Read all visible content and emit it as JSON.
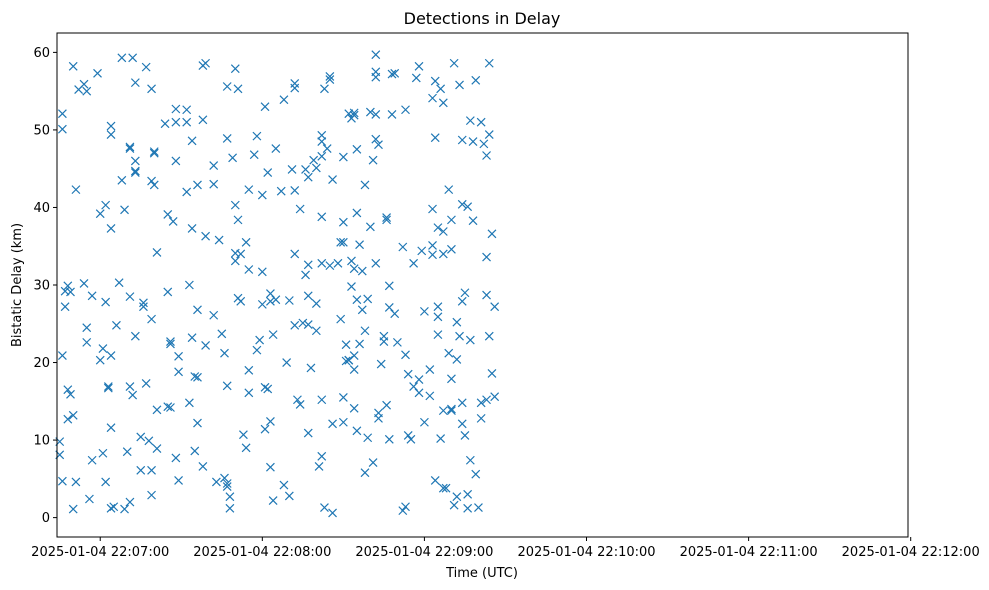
{
  "chart_data": {
    "type": "scatter",
    "title": "Detections in Delay",
    "xlabel": "Time (UTC)",
    "ylabel": "Bistatic Delay (km)",
    "marker": "x",
    "color": "#1f77b4",
    "grid": false,
    "legend": "none",
    "x_ticks": [
      "2025-01-04 22:07:00",
      "2025-01-04 22:08:00",
      "2025-01-04 22:09:00",
      "2025-01-04 22:10:00",
      "2025-01-04 22:11:00",
      "2025-01-04 22:12:00"
    ],
    "y_ticks": [
      0,
      10,
      20,
      30,
      40,
      50,
      60
    ],
    "xlim": [
      "2025-01-04 22:06:44",
      "2025-01-04 22:11:59"
    ],
    "ylim": [
      -2.5,
      62.5
    ],
    "x_start": "2025-01-04 22:06:45",
    "points": [
      [
        0,
        8.1
      ],
      [
        0,
        9.8
      ],
      [
        1,
        20.9
      ],
      [
        1,
        52.1
      ],
      [
        1,
        50.1
      ],
      [
        1,
        4.7
      ],
      [
        2,
        29.2
      ],
      [
        2,
        27.2
      ],
      [
        3,
        29.9
      ],
      [
        3,
        16.5
      ],
      [
        3,
        12.7
      ],
      [
        4,
        15.9
      ],
      [
        4,
        29.1
      ],
      [
        5,
        58.2
      ],
      [
        5,
        13.2
      ],
      [
        5,
        1.1
      ],
      [
        6,
        42.3
      ],
      [
        6,
        4.6
      ],
      [
        7,
        55.2
      ],
      [
        9,
        55.9
      ],
      [
        9,
        30.2
      ],
      [
        10,
        24.5
      ],
      [
        10,
        22.6
      ],
      [
        10,
        55.0
      ],
      [
        11,
        2.4
      ],
      [
        12,
        28.6
      ],
      [
        12,
        7.4
      ],
      [
        14,
        57.3
      ],
      [
        15,
        39.2
      ],
      [
        15,
        20.3
      ],
      [
        16,
        21.8
      ],
      [
        16,
        8.3
      ],
      [
        17,
        40.3
      ],
      [
        17,
        27.8
      ],
      [
        17,
        4.6
      ],
      [
        18,
        16.9
      ],
      [
        18,
        16.7
      ],
      [
        19,
        11.6
      ],
      [
        19,
        20.9
      ],
      [
        19,
        37.3
      ],
      [
        19,
        49.4
      ],
      [
        19,
        50.5
      ],
      [
        19,
        1.2
      ],
      [
        20,
        1.4
      ],
      [
        21,
        24.8
      ],
      [
        22,
        30.3
      ],
      [
        23,
        43.5
      ],
      [
        23,
        59.3
      ],
      [
        24,
        1.1
      ],
      [
        24,
        39.7
      ],
      [
        25,
        8.5
      ],
      [
        26,
        47.6
      ],
      [
        26,
        47.8
      ],
      [
        26,
        28.5
      ],
      [
        26,
        16.9
      ],
      [
        26,
        2.0
      ],
      [
        27,
        15.8
      ],
      [
        27,
        59.3
      ],
      [
        28,
        46.0
      ],
      [
        28,
        44.7
      ],
      [
        28,
        44.5
      ],
      [
        28,
        56.1
      ],
      [
        28,
        23.4
      ],
      [
        30,
        10.4
      ],
      [
        30,
        6.1
      ],
      [
        31,
        27.2
      ],
      [
        31,
        27.7
      ],
      [
        32,
        58.1
      ],
      [
        32,
        17.3
      ],
      [
        33,
        9.9
      ],
      [
        34,
        2.9
      ],
      [
        34,
        6.1
      ],
      [
        34,
        25.6
      ],
      [
        34,
        43.4
      ],
      [
        34,
        55.3
      ],
      [
        35,
        42.9
      ],
      [
        35,
        47.2
      ],
      [
        35,
        47.0
      ],
      [
        36,
        8.9
      ],
      [
        36,
        13.9
      ],
      [
        36,
        34.2
      ],
      [
        39,
        50.8
      ],
      [
        40,
        14.3
      ],
      [
        40,
        29.1
      ],
      [
        40,
        39.1
      ],
      [
        41,
        22.4
      ],
      [
        41,
        22.7
      ],
      [
        41,
        14.2
      ],
      [
        42,
        38.2
      ],
      [
        43,
        7.7
      ],
      [
        43,
        46.0
      ],
      [
        43,
        51.0
      ],
      [
        43,
        52.7
      ],
      [
        44,
        4.8
      ],
      [
        44,
        18.8
      ],
      [
        44,
        20.8
      ],
      [
        47,
        51.0
      ],
      [
        47,
        52.6
      ],
      [
        47,
        42.0
      ],
      [
        48,
        14.8
      ],
      [
        48,
        30.0
      ],
      [
        49,
        48.6
      ],
      [
        49,
        37.3
      ],
      [
        49,
        23.2
      ],
      [
        50,
        8.6
      ],
      [
        50,
        18.2
      ],
      [
        51,
        42.9
      ],
      [
        51,
        18.1
      ],
      [
        51,
        12.2
      ],
      [
        51,
        26.8
      ],
      [
        53,
        6.6
      ],
      [
        53,
        58.3
      ],
      [
        53,
        51.3
      ],
      [
        54,
        58.6
      ],
      [
        54,
        36.3
      ],
      [
        54,
        22.2
      ],
      [
        57,
        26.1
      ],
      [
        57,
        45.4
      ],
      [
        57,
        43.0
      ],
      [
        58,
        4.6
      ],
      [
        59,
        35.8
      ],
      [
        60,
        23.7
      ],
      [
        61,
        5.1
      ],
      [
        61,
        21.2
      ],
      [
        62,
        17.0
      ],
      [
        62,
        55.6
      ],
      [
        62,
        48.9
      ],
      [
        62,
        4.4
      ],
      [
        62,
        4.0
      ],
      [
        63,
        2.7
      ],
      [
        63,
        1.2
      ],
      [
        64,
        46.4
      ],
      [
        65,
        40.3
      ],
      [
        65,
        34.1
      ],
      [
        65,
        33.1
      ],
      [
        65,
        57.9
      ],
      [
        66,
        55.3
      ],
      [
        66,
        38.4
      ],
      [
        66,
        28.3
      ],
      [
        67,
        34.0
      ],
      [
        67,
        27.9
      ],
      [
        68,
        10.7
      ],
      [
        69,
        35.5
      ],
      [
        69,
        9.0
      ],
      [
        70,
        32.0
      ],
      [
        70,
        19.0
      ],
      [
        70,
        16.1
      ],
      [
        70,
        42.3
      ],
      [
        72,
        46.8
      ],
      [
        73,
        49.2
      ],
      [
        73,
        21.6
      ],
      [
        74,
        22.9
      ],
      [
        75,
        31.7
      ],
      [
        75,
        27.5
      ],
      [
        75,
        41.6
      ],
      [
        76,
        53.0
      ],
      [
        76,
        16.8
      ],
      [
        76,
        11.4
      ],
      [
        77,
        16.6
      ],
      [
        77,
        44.5
      ],
      [
        78,
        6.5
      ],
      [
        78,
        12.4
      ],
      [
        78,
        28.9
      ],
      [
        78,
        27.9
      ],
      [
        79,
        2.2
      ],
      [
        79,
        23.6
      ],
      [
        80,
        28.1
      ],
      [
        80,
        47.6
      ],
      [
        82,
        42.1
      ],
      [
        83,
        53.9
      ],
      [
        83,
        4.2
      ],
      [
        84,
        20.0
      ],
      [
        85,
        28.0
      ],
      [
        85,
        2.8
      ],
      [
        86,
        44.9
      ],
      [
        87,
        56.0
      ],
      [
        87,
        34.0
      ],
      [
        87,
        55.4
      ],
      [
        87,
        24.8
      ],
      [
        87,
        42.2
      ],
      [
        88,
        15.2
      ],
      [
        89,
        39.8
      ],
      [
        89,
        14.6
      ],
      [
        90,
        25.1
      ],
      [
        91,
        44.9
      ],
      [
        91,
        31.3
      ],
      [
        92,
        32.6
      ],
      [
        92,
        28.6
      ],
      [
        92,
        43.9
      ],
      [
        92,
        24.9
      ],
      [
        92,
        10.9
      ],
      [
        93,
        19.3
      ],
      [
        94,
        46.1
      ],
      [
        95,
        45.1
      ],
      [
        95,
        24.1
      ],
      [
        95,
        27.6
      ],
      [
        96,
        6.6
      ],
      [
        97,
        32.8
      ],
      [
        97,
        7.9
      ],
      [
        97,
        15.2
      ],
      [
        97,
        49.3
      ],
      [
        97,
        48.5
      ],
      [
        97,
        46.6
      ],
      [
        97,
        38.8
      ],
      [
        98,
        55.3
      ],
      [
        98,
        1.3
      ],
      [
        99,
        47.6
      ],
      [
        100,
        56.5
      ],
      [
        100,
        56.9
      ],
      [
        100,
        32.5
      ],
      [
        101,
        43.6
      ],
      [
        101,
        12.1
      ],
      [
        101,
        0.6
      ],
      [
        103,
        32.8
      ],
      [
        104,
        35.5
      ],
      [
        104,
        25.6
      ],
      [
        105,
        35.5
      ],
      [
        105,
        38.1
      ],
      [
        105,
        46.5
      ],
      [
        105,
        15.5
      ],
      [
        105,
        12.3
      ],
      [
        106,
        20.2
      ],
      [
        106,
        22.3
      ],
      [
        107,
        20.3
      ],
      [
        107,
        20.3
      ],
      [
        107,
        52.1
      ],
      [
        108,
        51.5
      ],
      [
        108,
        29.8
      ],
      [
        108,
        33.1
      ],
      [
        109,
        32.1
      ],
      [
        109,
        51.9
      ],
      [
        109,
        52.2
      ],
      [
        109,
        19.1
      ],
      [
        109,
        20.9
      ],
      [
        109,
        14.1
      ],
      [
        110,
        28.1
      ],
      [
        110,
        39.3
      ],
      [
        110,
        47.5
      ],
      [
        110,
        11.2
      ],
      [
        111,
        22.4
      ],
      [
        111,
        35.2
      ],
      [
        112,
        31.8
      ],
      [
        112,
        26.8
      ],
      [
        113,
        42.9
      ],
      [
        113,
        5.8
      ],
      [
        113,
        24.1
      ],
      [
        114,
        28.2
      ],
      [
        114,
        10.3
      ],
      [
        115,
        37.5
      ],
      [
        115,
        52.3
      ],
      [
        116,
        46.1
      ],
      [
        116,
        7.1
      ],
      [
        117,
        32.8
      ],
      [
        117,
        57.5
      ],
      [
        117,
        48.8
      ],
      [
        117,
        56.8
      ],
      [
        117,
        59.7
      ],
      [
        117,
        52.0
      ],
      [
        118,
        13.5
      ],
      [
        118,
        48.1
      ],
      [
        118,
        12.8
      ],
      [
        119,
        19.8
      ],
      [
        120,
        23.4
      ],
      [
        120,
        22.7
      ],
      [
        121,
        38.4
      ],
      [
        121,
        38.7
      ],
      [
        121,
        14.5
      ],
      [
        122,
        10.1
      ],
      [
        122,
        29.9
      ],
      [
        122,
        27.1
      ],
      [
        123,
        52.0
      ],
      [
        123,
        57.2
      ],
      [
        124,
        26.3
      ],
      [
        124,
        57.3
      ],
      [
        125,
        22.6
      ],
      [
        127,
        34.9
      ],
      [
        127,
        0.9
      ],
      [
        128,
        52.6
      ],
      [
        128,
        1.4
      ],
      [
        128,
        21.0
      ],
      [
        129,
        10.6
      ],
      [
        129,
        18.5
      ],
      [
        130,
        10.1
      ],
      [
        131,
        16.9
      ],
      [
        131,
        32.8
      ],
      [
        132,
        56.7
      ],
      [
        133,
        17.8
      ],
      [
        133,
        16.1
      ],
      [
        133,
        58.2
      ],
      [
        134,
        34.4
      ],
      [
        135,
        12.3
      ],
      [
        135,
        26.6
      ],
      [
        137,
        19.1
      ],
      [
        137,
        15.7
      ],
      [
        138,
        54.1
      ],
      [
        138,
        33.9
      ],
      [
        138,
        39.8
      ],
      [
        138,
        35.1
      ],
      [
        139,
        56.3
      ],
      [
        139,
        49.0
      ],
      [
        139,
        4.8
      ],
      [
        140,
        37.4
      ],
      [
        140,
        23.6
      ],
      [
        140,
        27.2
      ],
      [
        140,
        25.9
      ],
      [
        141,
        55.3
      ],
      [
        141,
        10.2
      ],
      [
        142,
        53.5
      ],
      [
        142,
        36.9
      ],
      [
        142,
        34.0
      ],
      [
        142,
        13.8
      ],
      [
        142,
        3.8
      ],
      [
        143,
        3.8
      ],
      [
        144,
        21.2
      ],
      [
        144,
        42.3
      ],
      [
        145,
        38.4
      ],
      [
        145,
        17.9
      ],
      [
        145,
        14.0
      ],
      [
        145,
        13.8
      ],
      [
        145,
        34.6
      ],
      [
        146,
        1.6
      ],
      [
        146,
        58.6
      ],
      [
        147,
        25.2
      ],
      [
        147,
        20.4
      ],
      [
        147,
        2.7
      ],
      [
        148,
        55.8
      ],
      [
        148,
        23.4
      ],
      [
        149,
        48.7
      ],
      [
        149,
        40.4
      ],
      [
        149,
        27.9
      ],
      [
        149,
        14.8
      ],
      [
        149,
        12.1
      ],
      [
        150,
        29.0
      ],
      [
        150,
        10.6
      ],
      [
        151,
        40.1
      ],
      [
        151,
        3.0
      ],
      [
        151,
        1.2
      ],
      [
        152,
        7.4
      ],
      [
        152,
        22.9
      ],
      [
        152,
        51.2
      ],
      [
        153,
        48.5
      ],
      [
        153,
        38.3
      ],
      [
        154,
        56.4
      ],
      [
        154,
        5.6
      ],
      [
        155,
        1.3
      ],
      [
        156,
        51.0
      ],
      [
        156,
        14.8
      ],
      [
        156,
        12.8
      ],
      [
        157,
        48.2
      ],
      [
        158,
        46.7
      ],
      [
        158,
        33.6
      ],
      [
        158,
        28.7
      ],
      [
        158,
        15.2
      ],
      [
        159,
        23.4
      ],
      [
        159,
        58.6
      ],
      [
        159,
        49.4
      ],
      [
        160,
        36.6
      ],
      [
        160,
        18.6
      ],
      [
        161,
        27.2
      ],
      [
        161,
        15.6
      ]
    ]
  }
}
